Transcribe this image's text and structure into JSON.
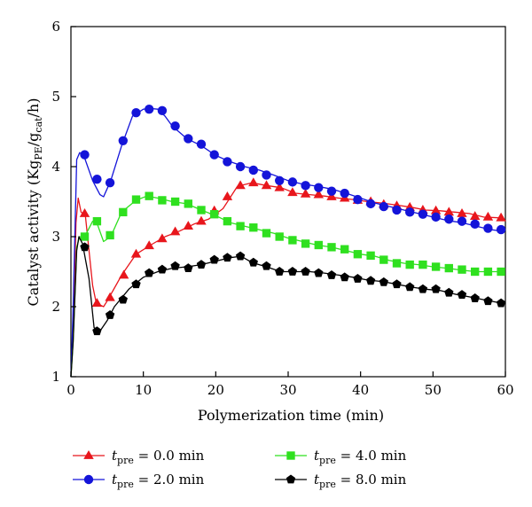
{
  "chart_data": {
    "type": "line",
    "title": "",
    "xlabel": "Polymerization time (min)",
    "ylabel": "Catalyst activity (Kg_PE/g_cat/h)",
    "ylabel_parts": {
      "prefix": "Catalyst activity (Kg",
      "sub1": "PE",
      "mid": "/g",
      "sub2": "cat",
      "suffix": "/h)"
    },
    "xlim": [
      0,
      60
    ],
    "ylim": [
      1,
      6
    ],
    "xticks": [
      0,
      10,
      20,
      30,
      40,
      50,
      60
    ],
    "yticks": [
      1,
      2,
      3,
      4,
      5,
      6
    ],
    "grid": false,
    "legend_position": "bottom",
    "series": [
      {
        "name": "t_pre = 0.0 min",
        "label_symbol": "t",
        "label_sub": "pre",
        "label_value": " = 0.0 min",
        "color": "#e8161c",
        "marker": "triangle",
        "line": [
          [
            0,
            1.0
          ],
          [
            0.3,
            1.6
          ],
          [
            0.7,
            3.2
          ],
          [
            1.0,
            3.55
          ],
          [
            1.4,
            3.35
          ],
          [
            2.0,
            3.3
          ],
          [
            3.0,
            2.3
          ],
          [
            3.5,
            2.05
          ],
          [
            4.5,
            2.0
          ],
          [
            5.0,
            2.08
          ],
          [
            7,
            2.45
          ],
          [
            9,
            2.75
          ],
          [
            11,
            2.88
          ],
          [
            13,
            3.0
          ],
          [
            15,
            3.08
          ],
          [
            17,
            3.18
          ],
          [
            19,
            3.25
          ],
          [
            21,
            3.4
          ],
          [
            23,
            3.72
          ],
          [
            25,
            3.77
          ],
          [
            27,
            3.73
          ],
          [
            29,
            3.7
          ],
          [
            31,
            3.62
          ],
          [
            33,
            3.6
          ],
          [
            35,
            3.58
          ],
          [
            37,
            3.55
          ],
          [
            39,
            3.53
          ],
          [
            41,
            3.5
          ],
          [
            43,
            3.48
          ],
          [
            45,
            3.45
          ],
          [
            47,
            3.42
          ],
          [
            49,
            3.38
          ],
          [
            51,
            3.37
          ],
          [
            53,
            3.35
          ],
          [
            55,
            3.33
          ],
          [
            57,
            3.28
          ],
          [
            59,
            3.27
          ]
        ],
        "markers": [
          [
            1.9,
            3.33
          ],
          [
            3.6,
            2.05
          ],
          [
            5.4,
            2.13
          ],
          [
            7.3,
            2.45
          ],
          [
            9.0,
            2.75
          ],
          [
            10.8,
            2.87
          ],
          [
            12.6,
            2.97
          ],
          [
            14.4,
            3.07
          ],
          [
            16.2,
            3.15
          ],
          [
            18.0,
            3.22
          ],
          [
            19.8,
            3.37
          ],
          [
            21.6,
            3.57
          ],
          [
            23.4,
            3.73
          ],
          [
            25.2,
            3.77
          ],
          [
            27.0,
            3.73
          ],
          [
            28.8,
            3.7
          ],
          [
            30.6,
            3.63
          ],
          [
            32.4,
            3.61
          ],
          [
            34.2,
            3.6
          ],
          [
            36.0,
            3.57
          ],
          [
            37.8,
            3.55
          ],
          [
            39.6,
            3.52
          ],
          [
            41.4,
            3.5
          ],
          [
            43.2,
            3.46
          ],
          [
            45.0,
            3.44
          ],
          [
            46.8,
            3.42
          ],
          [
            48.6,
            3.38
          ],
          [
            50.4,
            3.37
          ],
          [
            52.2,
            3.35
          ],
          [
            54.0,
            3.33
          ],
          [
            55.8,
            3.29
          ],
          [
            57.6,
            3.28
          ],
          [
            59.4,
            3.27
          ]
        ]
      },
      {
        "name": "t_pre = 2.0 min",
        "label_symbol": "t",
        "label_sub": "pre",
        "label_value": " = 2.0 min",
        "color": "#1414d9",
        "marker": "circle",
        "line": [
          [
            0,
            1.0
          ],
          [
            0.3,
            2.0
          ],
          [
            0.8,
            4.1
          ],
          [
            1.2,
            4.2
          ],
          [
            1.8,
            4.15
          ],
          [
            3.0,
            3.8
          ],
          [
            4.0,
            3.6
          ],
          [
            4.5,
            3.57
          ],
          [
            5.5,
            3.8
          ],
          [
            7,
            4.3
          ],
          [
            8.5,
            4.72
          ],
          [
            10,
            4.82
          ],
          [
            11,
            4.83
          ],
          [
            12,
            4.82
          ],
          [
            13,
            4.72
          ],
          [
            14,
            4.58
          ],
          [
            16,
            4.4
          ],
          [
            18,
            4.3
          ],
          [
            20,
            4.16
          ],
          [
            22,
            4.07
          ],
          [
            24,
            4.0
          ],
          [
            26,
            3.95
          ],
          [
            28,
            3.88
          ],
          [
            30,
            3.8
          ],
          [
            32,
            3.75
          ],
          [
            34,
            3.72
          ],
          [
            36,
            3.68
          ],
          [
            38,
            3.62
          ],
          [
            40,
            3.55
          ],
          [
            42,
            3.48
          ],
          [
            44,
            3.43
          ],
          [
            46,
            3.38
          ],
          [
            48,
            3.33
          ],
          [
            50,
            3.28
          ],
          [
            52,
            3.23
          ],
          [
            54,
            3.2
          ],
          [
            56,
            3.15
          ],
          [
            58,
            3.1
          ],
          [
            59.5,
            3.08
          ]
        ],
        "markers": [
          [
            1.9,
            4.17
          ],
          [
            3.6,
            3.82
          ],
          [
            5.4,
            3.77
          ],
          [
            7.2,
            4.37
          ],
          [
            9.0,
            4.77
          ],
          [
            10.8,
            4.82
          ],
          [
            12.6,
            4.8
          ],
          [
            14.4,
            4.58
          ],
          [
            16.2,
            4.4
          ],
          [
            18.0,
            4.32
          ],
          [
            19.8,
            4.17
          ],
          [
            21.6,
            4.07
          ],
          [
            23.4,
            4.0
          ],
          [
            25.2,
            3.95
          ],
          [
            27.0,
            3.88
          ],
          [
            28.8,
            3.8
          ],
          [
            30.6,
            3.78
          ],
          [
            32.4,
            3.73
          ],
          [
            34.2,
            3.7
          ],
          [
            36.0,
            3.65
          ],
          [
            37.8,
            3.62
          ],
          [
            39.6,
            3.53
          ],
          [
            41.4,
            3.47
          ],
          [
            43.2,
            3.43
          ],
          [
            45.0,
            3.38
          ],
          [
            46.8,
            3.35
          ],
          [
            48.6,
            3.32
          ],
          [
            50.4,
            3.28
          ],
          [
            52.2,
            3.25
          ],
          [
            54.0,
            3.22
          ],
          [
            55.8,
            3.18
          ],
          [
            57.6,
            3.12
          ],
          [
            59.4,
            3.1
          ]
        ]
      },
      {
        "name": "t_pre = 4.0 min",
        "label_symbol": "t",
        "label_sub": "pre",
        "label_value": " = 4.0 min",
        "color": "#2fe01f",
        "marker": "square",
        "line": [
          [
            0,
            1.0
          ],
          [
            0.3,
            1.5
          ],
          [
            0.8,
            2.85
          ],
          [
            1.2,
            3.0
          ],
          [
            1.8,
            2.98
          ],
          [
            3.0,
            3.22
          ],
          [
            3.5,
            3.22
          ],
          [
            4.5,
            2.93
          ],
          [
            5.5,
            3.0
          ],
          [
            7,
            3.35
          ],
          [
            9,
            3.52
          ],
          [
            10.5,
            3.58
          ],
          [
            12,
            3.55
          ],
          [
            14,
            3.5
          ],
          [
            16,
            3.47
          ],
          [
            18,
            3.38
          ],
          [
            20,
            3.3
          ],
          [
            22,
            3.2
          ],
          [
            24,
            3.15
          ],
          [
            26,
            3.1
          ],
          [
            28,
            3.05
          ],
          [
            30,
            2.98
          ],
          [
            32,
            2.93
          ],
          [
            34,
            2.88
          ],
          [
            36,
            2.85
          ],
          [
            38,
            2.8
          ],
          [
            40,
            2.75
          ],
          [
            42,
            2.72
          ],
          [
            44,
            2.66
          ],
          [
            46,
            2.62
          ],
          [
            48,
            2.6
          ],
          [
            50,
            2.57
          ],
          [
            52,
            2.55
          ],
          [
            54,
            2.52
          ],
          [
            56,
            2.5
          ],
          [
            58,
            2.5
          ],
          [
            59.5,
            2.5
          ]
        ],
        "markers": [
          [
            1.9,
            3.0
          ],
          [
            3.6,
            3.22
          ],
          [
            5.4,
            3.02
          ],
          [
            7.2,
            3.35
          ],
          [
            9.0,
            3.53
          ],
          [
            10.8,
            3.58
          ],
          [
            12.6,
            3.52
          ],
          [
            14.4,
            3.5
          ],
          [
            16.2,
            3.47
          ],
          [
            18.0,
            3.38
          ],
          [
            19.8,
            3.32
          ],
          [
            21.6,
            3.22
          ],
          [
            23.4,
            3.15
          ],
          [
            25.2,
            3.13
          ],
          [
            27.0,
            3.05
          ],
          [
            28.8,
            3.0
          ],
          [
            30.6,
            2.95
          ],
          [
            32.4,
            2.9
          ],
          [
            34.2,
            2.88
          ],
          [
            36.0,
            2.85
          ],
          [
            37.8,
            2.82
          ],
          [
            39.6,
            2.75
          ],
          [
            41.4,
            2.73
          ],
          [
            43.2,
            2.67
          ],
          [
            45.0,
            2.62
          ],
          [
            46.8,
            2.6
          ],
          [
            48.6,
            2.6
          ],
          [
            50.4,
            2.57
          ],
          [
            52.2,
            2.55
          ],
          [
            54.0,
            2.53
          ],
          [
            55.8,
            2.5
          ],
          [
            57.6,
            2.5
          ],
          [
            59.4,
            2.5
          ]
        ]
      },
      {
        "name": "t_pre = 8.0 min",
        "label_symbol": "t",
        "label_sub": "pre",
        "label_value": " = 8.0 min",
        "color": "#000000",
        "marker": "pentagon",
        "line": [
          [
            0,
            1.0
          ],
          [
            0.3,
            1.5
          ],
          [
            0.8,
            2.8
          ],
          [
            1.1,
            3.0
          ],
          [
            1.6,
            2.9
          ],
          [
            2.5,
            2.4
          ],
          [
            3.2,
            1.7
          ],
          [
            4.0,
            1.65
          ],
          [
            5,
            1.8
          ],
          [
            6,
            2.0
          ],
          [
            8,
            2.25
          ],
          [
            10,
            2.42
          ],
          [
            12,
            2.5
          ],
          [
            14,
            2.55
          ],
          [
            16,
            2.57
          ],
          [
            18,
            2.6
          ],
          [
            20,
            2.65
          ],
          [
            22,
            2.7
          ],
          [
            23.5,
            2.72
          ],
          [
            25,
            2.63
          ],
          [
            27,
            2.57
          ],
          [
            29,
            2.5
          ],
          [
            31,
            2.5
          ],
          [
            33,
            2.5
          ],
          [
            35,
            2.48
          ],
          [
            37,
            2.45
          ],
          [
            39,
            2.42
          ],
          [
            41,
            2.38
          ],
          [
            43,
            2.36
          ],
          [
            45,
            2.32
          ],
          [
            47,
            2.28
          ],
          [
            49,
            2.25
          ],
          [
            51,
            2.23
          ],
          [
            53,
            2.18
          ],
          [
            55,
            2.14
          ],
          [
            57,
            2.1
          ],
          [
            59.5,
            2.05
          ]
        ],
        "markers": [
          [
            1.9,
            2.85
          ],
          [
            3.6,
            1.65
          ],
          [
            5.4,
            1.88
          ],
          [
            7.2,
            2.1
          ],
          [
            9.0,
            2.32
          ],
          [
            10.8,
            2.48
          ],
          [
            12.6,
            2.53
          ],
          [
            14.4,
            2.58
          ],
          [
            16.2,
            2.55
          ],
          [
            18.0,
            2.6
          ],
          [
            19.8,
            2.67
          ],
          [
            21.6,
            2.7
          ],
          [
            23.4,
            2.72
          ],
          [
            25.2,
            2.63
          ],
          [
            27.0,
            2.58
          ],
          [
            28.8,
            2.5
          ],
          [
            30.6,
            2.5
          ],
          [
            32.4,
            2.5
          ],
          [
            34.2,
            2.48
          ],
          [
            36.0,
            2.45
          ],
          [
            37.8,
            2.42
          ],
          [
            39.6,
            2.4
          ],
          [
            41.4,
            2.37
          ],
          [
            43.2,
            2.35
          ],
          [
            45.0,
            2.32
          ],
          [
            46.8,
            2.28
          ],
          [
            48.6,
            2.25
          ],
          [
            50.4,
            2.25
          ],
          [
            52.2,
            2.2
          ],
          [
            54.0,
            2.17
          ],
          [
            55.8,
            2.12
          ],
          [
            57.6,
            2.08
          ],
          [
            59.4,
            2.05
          ]
        ]
      }
    ]
  }
}
